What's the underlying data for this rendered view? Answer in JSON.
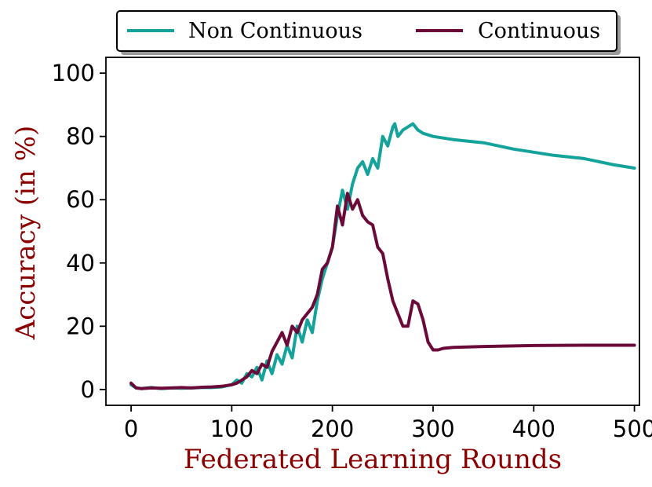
{
  "chart_data": {
    "type": "line",
    "title": "",
    "xlabel": "Federated Learning Rounds",
    "ylabel": "Accuracy (in %)",
    "label_color": "#8b0000",
    "xlim": [
      -25,
      505
    ],
    "ylim": [
      -5,
      105
    ],
    "xticks": [
      0,
      100,
      200,
      300,
      400,
      500
    ],
    "yticks": [
      0,
      20,
      40,
      60,
      80,
      100
    ],
    "grid": false,
    "legend": {
      "placement": "top, outside plot area",
      "columns": 2
    },
    "series": [
      {
        "name": "Non Continuous",
        "color": "#14a39a",
        "x": [
          0,
          5,
          10,
          20,
          30,
          40,
          50,
          60,
          70,
          80,
          90,
          100,
          105,
          110,
          115,
          120,
          125,
          130,
          135,
          140,
          145,
          150,
          155,
          160,
          165,
          170,
          175,
          180,
          185,
          190,
          195,
          200,
          205,
          210,
          215,
          220,
          225,
          230,
          235,
          240,
          245,
          250,
          255,
          260,
          262,
          265,
          270,
          275,
          280,
          285,
          290,
          300,
          320,
          350,
          380,
          400,
          420,
          450,
          480,
          500
        ],
        "y": [
          1.5,
          0.5,
          0.3,
          0.6,
          0.3,
          0.5,
          0.4,
          0.5,
          0.6,
          0.6,
          0.8,
          1.5,
          3,
          2,
          5,
          4,
          7,
          3,
          9,
          5,
          11,
          8,
          14,
          10,
          20,
          15,
          22,
          18,
          28,
          35,
          40,
          45,
          55,
          63,
          57,
          65,
          70,
          72,
          68,
          73,
          70,
          80,
          77,
          83,
          84,
          80,
          82,
          83,
          84,
          82,
          81,
          80,
          79,
          78,
          76,
          75,
          74,
          73,
          71,
          70
        ],
        "values": [
          1.5,
          0.5,
          0.3,
          0.6,
          0.3,
          0.5,
          0.4,
          0.5,
          0.6,
          0.6,
          0.8,
          1.5,
          3,
          2,
          5,
          4,
          7,
          3,
          9,
          5,
          11,
          8,
          14,
          10,
          20,
          15,
          22,
          18,
          28,
          35,
          40,
          45,
          55,
          63,
          57,
          65,
          70,
          72,
          68,
          73,
          70,
          80,
          77,
          83,
          84,
          80,
          82,
          83,
          84,
          82,
          81,
          80,
          79,
          78,
          76,
          75,
          74,
          73,
          71,
          70
        ]
      },
      {
        "name": "Continuous",
        "color": "#6b0a38",
        "x": [
          0,
          5,
          10,
          20,
          30,
          40,
          50,
          60,
          70,
          80,
          90,
          100,
          105,
          110,
          115,
          120,
          125,
          130,
          135,
          140,
          145,
          150,
          155,
          160,
          165,
          170,
          175,
          180,
          185,
          190,
          195,
          200,
          205,
          210,
          215,
          220,
          225,
          230,
          235,
          240,
          245,
          250,
          255,
          260,
          265,
          270,
          275,
          280,
          285,
          290,
          295,
          300,
          305,
          310,
          320,
          350,
          400,
          450,
          500
        ],
        "y": [
          2,
          0.5,
          0.3,
          0.5,
          0.4,
          0.5,
          0.6,
          0.5,
          0.7,
          0.8,
          1,
          1.5,
          2,
          3,
          4,
          6,
          5,
          8,
          7,
          12,
          15,
          18,
          14,
          20,
          18,
          22,
          24,
          26,
          30,
          38,
          40,
          45,
          58,
          52,
          62,
          57,
          60,
          55,
          53,
          52,
          45,
          43,
          35,
          28,
          24,
          20,
          20,
          28,
          27,
          22,
          15,
          12.5,
          12.5,
          13,
          13.3,
          13.6,
          13.9,
          14,
          14
        ],
        "values": [
          2,
          0.5,
          0.3,
          0.5,
          0.4,
          0.5,
          0.6,
          0.5,
          0.7,
          0.8,
          1,
          1.5,
          2,
          3,
          4,
          6,
          5,
          8,
          7,
          12,
          15,
          18,
          14,
          20,
          18,
          22,
          24,
          26,
          30,
          38,
          40,
          45,
          58,
          52,
          62,
          57,
          60,
          55,
          53,
          52,
          45,
          43,
          35,
          28,
          24,
          20,
          20,
          28,
          27,
          22,
          15,
          12.5,
          12.5,
          13,
          13.3,
          13.6,
          13.9,
          14,
          14
        ]
      }
    ]
  }
}
